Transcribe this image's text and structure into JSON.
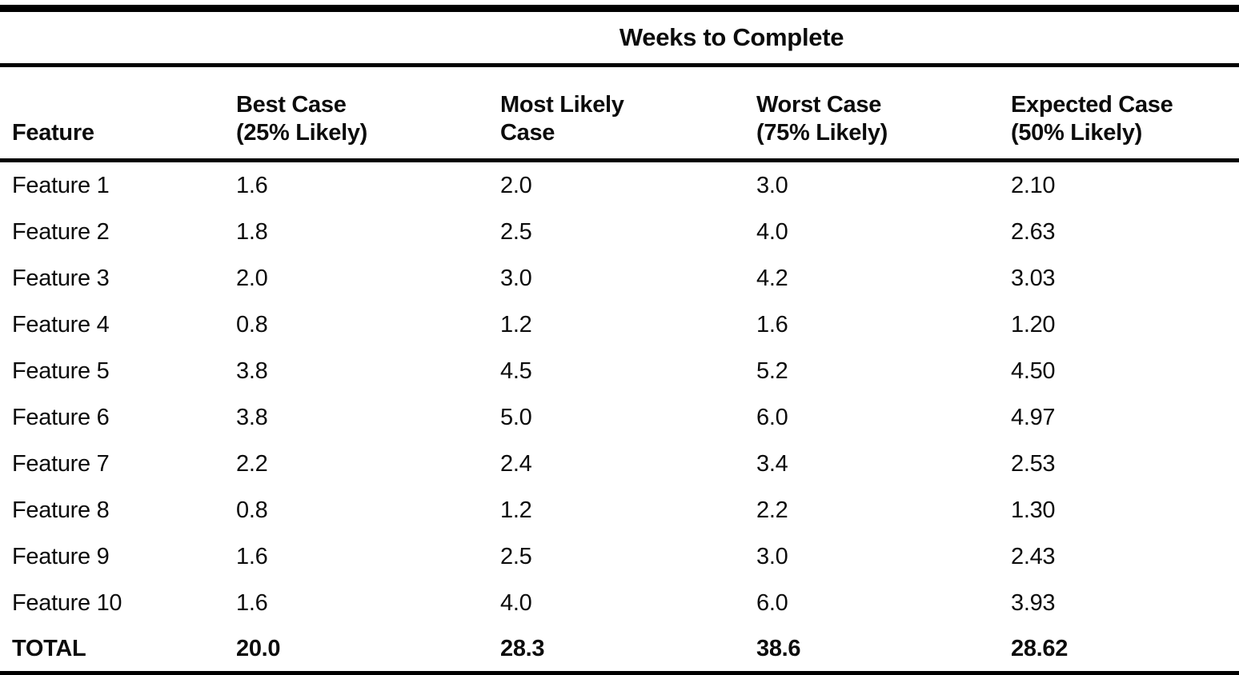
{
  "page": {
    "background": "#ffffff",
    "text_color": "#0c0c0c",
    "rule_color": "#000000"
  },
  "table": {
    "title": "Weeks to Complete",
    "headers": {
      "feature": "Feature",
      "best": "Best Case\n(25% Likely)",
      "most_likely": "Most Likely\nCase",
      "worst": "Worst Case\n(75% Likely)",
      "expected": "Expected Case\n(50% Likely)"
    },
    "rows": [
      {
        "feature": "Feature 1",
        "best": "1.6",
        "most_likely": "2.0",
        "worst": "3.0",
        "expected": "2.10"
      },
      {
        "feature": "Feature 2",
        "best": "1.8",
        "most_likely": "2.5",
        "worst": "4.0",
        "expected": "2.63"
      },
      {
        "feature": "Feature 3",
        "best": "2.0",
        "most_likely": "3.0",
        "worst": "4.2",
        "expected": "3.03"
      },
      {
        "feature": "Feature 4",
        "best": "0.8",
        "most_likely": "1.2",
        "worst": "1.6",
        "expected": "1.20"
      },
      {
        "feature": "Feature 5",
        "best": "3.8",
        "most_likely": "4.5",
        "worst": "5.2",
        "expected": "4.50"
      },
      {
        "feature": "Feature 6",
        "best": "3.8",
        "most_likely": "5.0",
        "worst": "6.0",
        "expected": "4.97"
      },
      {
        "feature": "Feature 7",
        "best": "2.2",
        "most_likely": "2.4",
        "worst": "3.4",
        "expected": "2.53"
      },
      {
        "feature": "Feature 8",
        "best": "0.8",
        "most_likely": "1.2",
        "worst": "2.2",
        "expected": "1.30"
      },
      {
        "feature": "Feature 9",
        "best": "1.6",
        "most_likely": "2.5",
        "worst": "3.0",
        "expected": "2.43"
      },
      {
        "feature": "Feature 10",
        "best": "1.6",
        "most_likely": "4.0",
        "worst": "6.0",
        "expected": "3.93"
      }
    ],
    "total": {
      "feature": "TOTAL",
      "best": "20.0",
      "most_likely": "28.3",
      "worst": "38.6",
      "expected": "28.62"
    }
  },
  "chart_data": {
    "type": "table",
    "title": "Weeks to Complete",
    "columns": [
      "Feature",
      "Best Case (25% Likely)",
      "Most Likely Case",
      "Worst Case (75% Likely)",
      "Expected Case (50% Likely)"
    ],
    "rows": [
      [
        "Feature 1",
        1.6,
        2.0,
        3.0,
        2.1
      ],
      [
        "Feature 2",
        1.8,
        2.5,
        4.0,
        2.63
      ],
      [
        "Feature 3",
        2.0,
        3.0,
        4.2,
        3.03
      ],
      [
        "Feature 4",
        0.8,
        1.2,
        1.6,
        1.2
      ],
      [
        "Feature 5",
        3.8,
        4.5,
        5.2,
        4.5
      ],
      [
        "Feature 6",
        3.8,
        5.0,
        6.0,
        4.97
      ],
      [
        "Feature 7",
        2.2,
        2.4,
        3.4,
        2.53
      ],
      [
        "Feature 8",
        0.8,
        1.2,
        2.2,
        1.3
      ],
      [
        "Feature 9",
        1.6,
        2.5,
        3.0,
        2.43
      ],
      [
        "Feature 10",
        1.6,
        4.0,
        6.0,
        3.93
      ],
      [
        "TOTAL",
        20.0,
        28.3,
        38.6,
        28.62
      ]
    ]
  }
}
